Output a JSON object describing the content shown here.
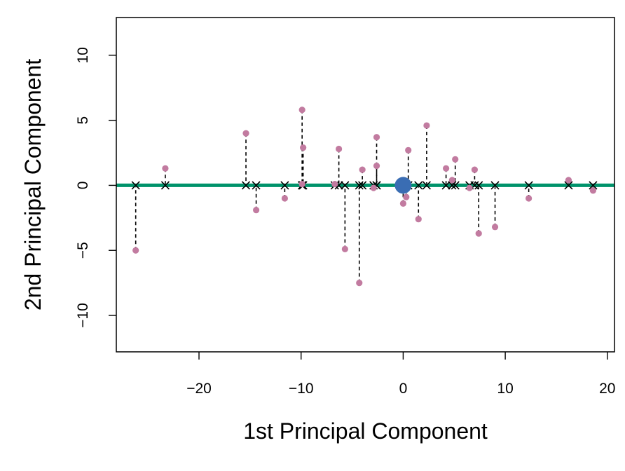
{
  "chart_data": {
    "type": "scatter",
    "xlabel": "1st Principal Component",
    "ylabel": "2nd Principal Component",
    "xlim": [
      -28.1,
      20.7
    ],
    "ylim": [
      -12.8,
      12.9
    ],
    "x_ticks": [
      -20,
      -10,
      0,
      10,
      20
    ],
    "y_ticks": [
      -10,
      -5,
      0,
      5,
      10
    ],
    "x_tick_labels": [
      "−20",
      "−10",
      "0",
      "10",
      "20"
    ],
    "y_tick_labels": [
      "−10",
      "−5",
      "0",
      "5",
      "10"
    ],
    "grid": false,
    "colors": {
      "points": "#c27ba0",
      "projection_line": "#00936b",
      "mean_point": "#3a6db3",
      "projections": "#000000"
    },
    "component_line": {
      "y": 0
    },
    "mean": {
      "x": 0,
      "y": 0
    },
    "points": [
      {
        "x": -26.2,
        "y": -5.0
      },
      {
        "x": -23.3,
        "y": 1.3
      },
      {
        "x": -15.4,
        "y": 4.0
      },
      {
        "x": -14.4,
        "y": -1.9
      },
      {
        "x": -11.6,
        "y": -1.0
      },
      {
        "x": -9.9,
        "y": 5.8
      },
      {
        "x": -9.8,
        "y": 2.9
      },
      {
        "x": -9.9,
        "y": 0.1
      },
      {
        "x": -6.7,
        "y": 0.1
      },
      {
        "x": -6.3,
        "y": 2.8
      },
      {
        "x": -5.7,
        "y": -4.9
      },
      {
        "x": -4.3,
        "y": -7.5
      },
      {
        "x": -4.0,
        "y": 1.2
      },
      {
        "x": -2.9,
        "y": -0.2
      },
      {
        "x": -2.6,
        "y": 3.7
      },
      {
        "x": -2.6,
        "y": 1.5
      },
      {
        "x": 0.0,
        "y": -1.4
      },
      {
        "x": 0.3,
        "y": -0.9
      },
      {
        "x": 0.5,
        "y": 2.7
      },
      {
        "x": 1.5,
        "y": -2.6
      },
      {
        "x": 2.3,
        "y": 4.6
      },
      {
        "x": 4.2,
        "y": 1.3
      },
      {
        "x": 4.8,
        "y": 0.4
      },
      {
        "x": 5.1,
        "y": 2.0
      },
      {
        "x": 6.5,
        "y": -0.2
      },
      {
        "x": 7.0,
        "y": 1.2
      },
      {
        "x": 7.4,
        "y": -3.7
      },
      {
        "x": 9.0,
        "y": -3.2
      },
      {
        "x": 12.3,
        "y": -1.0
      },
      {
        "x": 16.2,
        "y": 0.4
      },
      {
        "x": 18.6,
        "y": -0.4
      }
    ]
  }
}
